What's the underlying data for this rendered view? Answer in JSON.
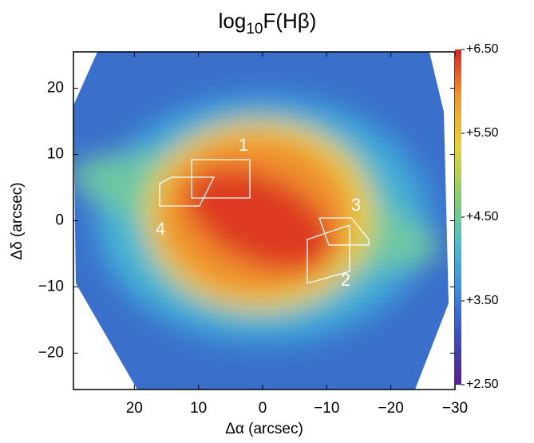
{
  "chart_data": {
    "type": "heatmap",
    "title": [
      "log",
      "10",
      "F(Hβ)"
    ],
    "xlabel": "Δα (arcsec)",
    "ylabel": "Δδ (arcsec)",
    "xlim": [
      29.5,
      -30
    ],
    "ylim": [
      -25.5,
      25.5
    ],
    "xticks": [
      20,
      10,
      0,
      {
        "value": -10,
        "label": "−10"
      },
      {
        "value": -20,
        "label": "−20"
      },
      {
        "value": -30,
        "label": "−30"
      }
    ],
    "yticks": [
      {
        "value": -20,
        "label": "−20"
      },
      {
        "value": -10,
        "label": "−10"
      },
      0,
      10,
      20
    ],
    "clim": [
      2.5,
      6.5
    ],
    "cticks": [
      {
        "value": 2.5,
        "label": "+2.50"
      },
      {
        "value": 3.5,
        "label": "+3.50"
      },
      {
        "value": 4.5,
        "label": "+4.50"
      },
      {
        "value": 5.5,
        "label": "+5.50"
      },
      {
        "value": 6.5,
        "label": "+6.50"
      }
    ],
    "colormap": [
      "#5a1e8c",
      "#3b4cc0",
      "#3a8ee0",
      "#4fc1c8",
      "#8ed06a",
      "#e8d23a",
      "#f09a2e",
      "#d7261e"
    ],
    "annotations": [
      "1",
      "2",
      "3",
      "4"
    ]
  }
}
